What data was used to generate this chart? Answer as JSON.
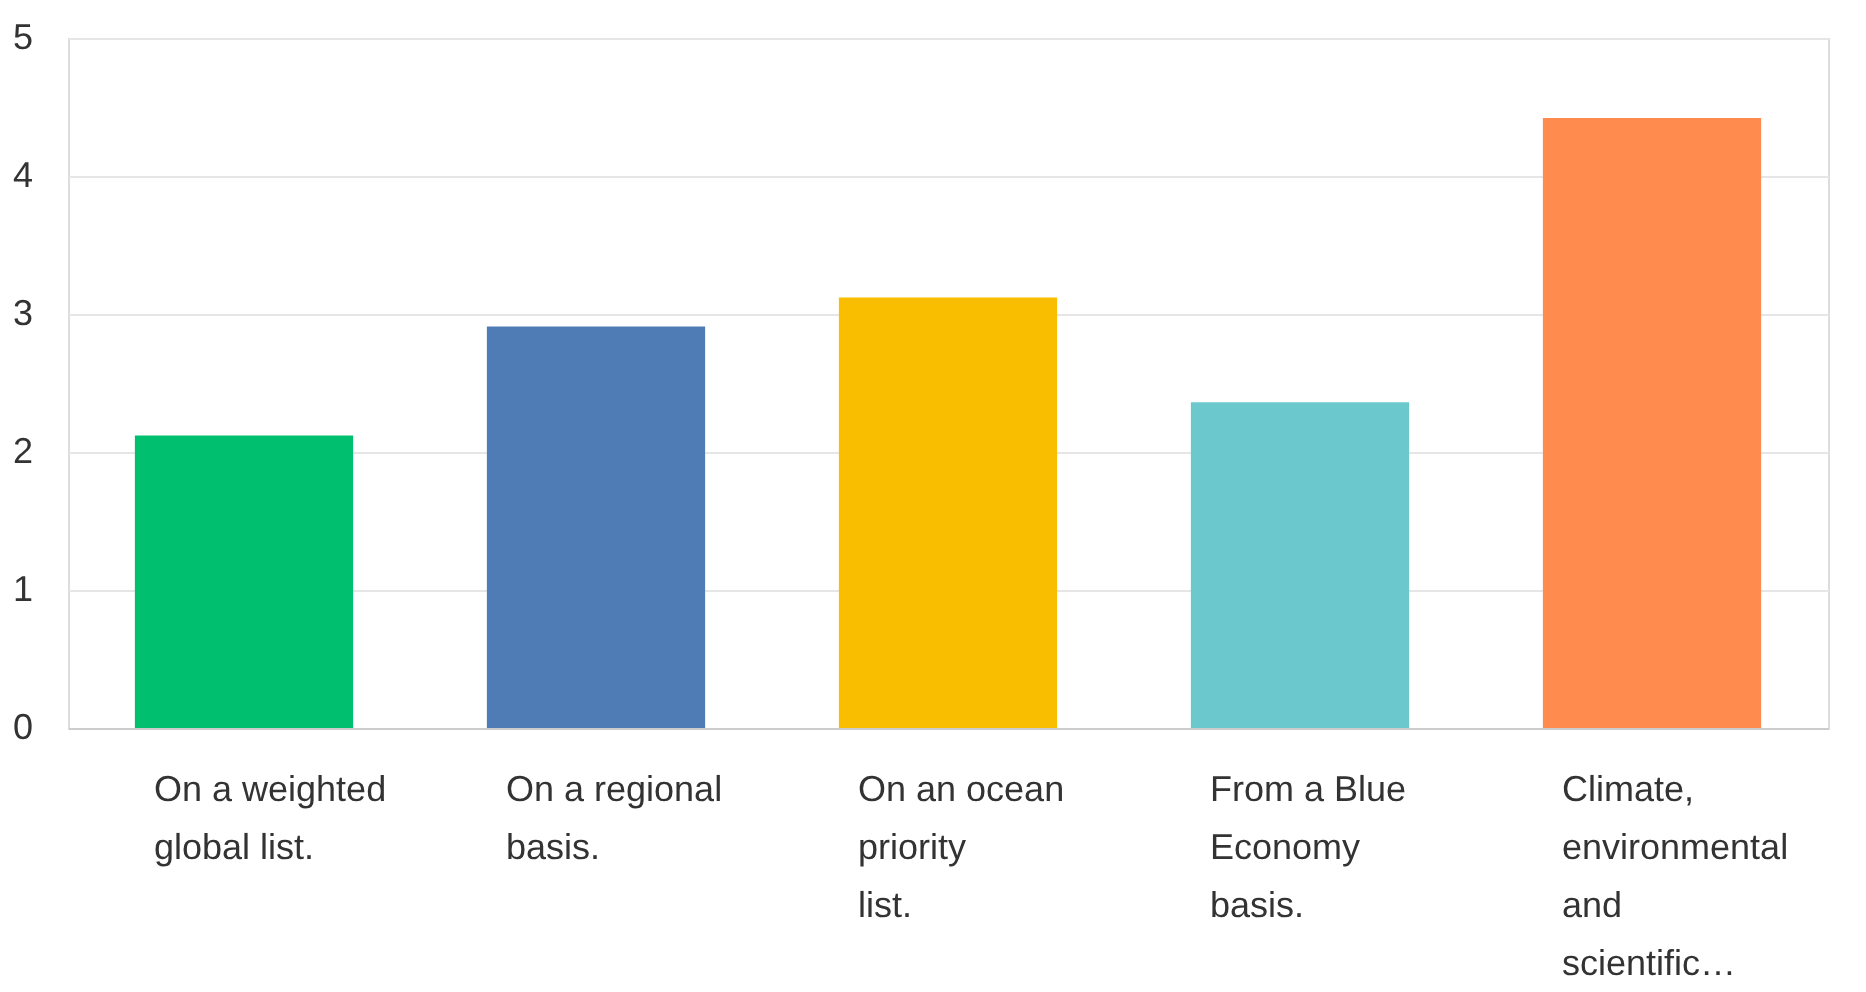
{
  "chart_data": {
    "type": "bar",
    "categories": [
      "On a weighted global list.",
      "On a regional basis.",
      "On an ocean priority list.",
      "From a Blue Economy basis.",
      "Climate, environmental and scientific…"
    ],
    "values": [
      2.12,
      2.91,
      3.12,
      2.36,
      4.42
    ],
    "colors": [
      "#00bf6f",
      "#507cb6",
      "#f9be00",
      "#6bc8cd",
      "#ff8b4f"
    ],
    "ylim": [
      0,
      5
    ],
    "yticks": [
      0,
      1,
      2,
      3,
      4,
      5
    ],
    "grid": "y"
  }
}
